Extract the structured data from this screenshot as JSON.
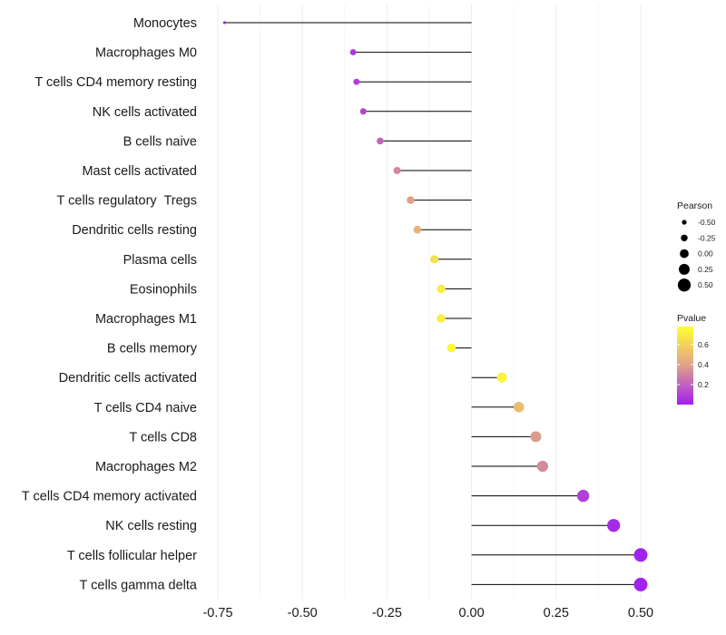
{
  "chart_data": {
    "type": "lollipop",
    "xlim": [
      -0.75,
      0.5
    ],
    "x_ticks": [
      -0.75,
      -0.5,
      -0.25,
      0.0,
      0.25,
      0.5
    ],
    "x_tick_labels": [
      "-0.75",
      "-0.50",
      "-0.25",
      "0.00",
      "0.25",
      "0.50"
    ],
    "grid": true,
    "categories": [
      "Monocytes",
      "Macrophages M0",
      "T cells CD4 memory resting",
      "NK cells activated",
      "B cells naive",
      "Mast cells activated",
      "T cells regulatory  Tregs",
      "Dendritic cells resting",
      "Plasma cells",
      "Eosinophils",
      "Macrophages M1",
      "B cells memory",
      "Dendritic cells activated",
      "T cells CD4 naive",
      "T cells CD8",
      "Macrophages M2",
      "T cells CD4 memory activated",
      "NK cells resting",
      "T cells follicular helper",
      "T cells gamma delta"
    ],
    "pearson": [
      -0.73,
      -0.35,
      -0.34,
      -0.32,
      -0.27,
      -0.22,
      -0.18,
      -0.16,
      -0.11,
      -0.09,
      -0.09,
      -0.06,
      0.09,
      0.14,
      0.19,
      0.21,
      0.33,
      0.42,
      0.5,
      0.5
    ],
    "pvalue": [
      0.01,
      0.08,
      0.09,
      0.12,
      0.22,
      0.32,
      0.4,
      0.48,
      0.66,
      0.72,
      0.72,
      0.78,
      0.75,
      0.52,
      0.38,
      0.33,
      0.1,
      0.03,
      0.01,
      0.01
    ],
    "size_legend": {
      "title": "Pearson",
      "values": [
        -0.5,
        -0.25,
        0.0,
        0.25,
        0.5
      ],
      "labels": [
        "-0.50",
        "-0.25",
        "0.00",
        "0.25",
        "0.50"
      ]
    },
    "color_legend": {
      "title": "Pvalue",
      "range": [
        0.0,
        0.8
      ],
      "ticks": [
        0.2,
        0.4,
        0.6
      ],
      "tick_labels": [
        "0.2",
        "0.4",
        "0.6"
      ],
      "low_color": "#a020f0",
      "mid_color": "#e0a08a",
      "high_color": "#ffff33"
    }
  }
}
